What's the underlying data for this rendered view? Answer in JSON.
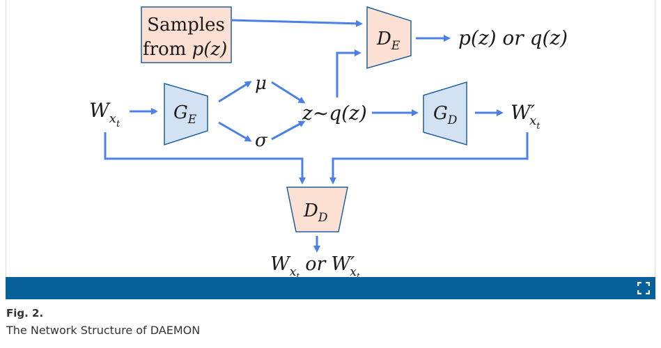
{
  "diagram": {
    "samples_box": {
      "line1": "Samples",
      "line2": "from ",
      "line2_math": "p(z)"
    },
    "nodes": {
      "de": {
        "main": "D",
        "sub": "E"
      },
      "ge": {
        "main": "G",
        "sub": "E"
      },
      "gd": {
        "main": "G",
        "sub": "D"
      },
      "dd": {
        "main": "D",
        "sub": "D"
      }
    },
    "labels": {
      "output_pz_qz": "p(z) or q(z)",
      "mu": "μ",
      "sigma": "σ",
      "z_q": "z~q(z)",
      "w_main": "W",
      "w_sub": "x",
      "w_subsub": "t",
      "w_prime_main": "W′",
      "dd_out_or": "or"
    }
  },
  "figure_bar": {
    "expand_icon": "expand-icon"
  },
  "caption": {
    "label": "Fig. 2.",
    "text": "The Network Structure of DAEMON"
  },
  "colors": {
    "arrow": "#4a80e8",
    "bar": "#06609a",
    "trap_blue": "#d3e2f3",
    "box_pink": "#fde0d4"
  }
}
